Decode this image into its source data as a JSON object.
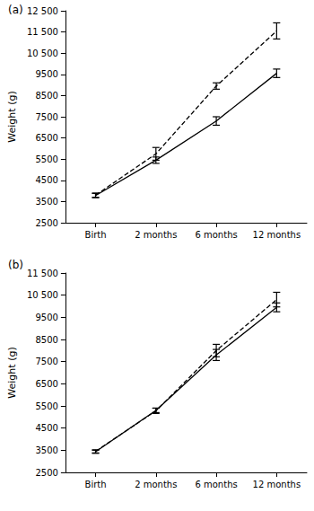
{
  "chart_data": [
    {
      "type": "line",
      "title": "(a)",
      "y_label": "Weight (g)",
      "categories": [
        "Birth",
        "2 months",
        "6 months",
        "12 months"
      ],
      "ylim": [
        2500,
        12500
      ],
      "yticks": [
        2500,
        3500,
        4500,
        5500,
        6500,
        7500,
        8500,
        9500,
        {
          "value": 10500,
          "label": "10 500"
        },
        {
          "value": 11500,
          "label": "11 500"
        },
        {
          "value": 12500,
          "label": "12 500"
        }
      ],
      "grid": false,
      "series": [
        {
          "color": "#000000",
          "line_style": "dashed",
          "values": [
            3800,
            5750,
            8950,
            11550
          ],
          "errors": [
            100,
            300,
            150,
            380
          ]
        },
        {
          "color": "#000000",
          "line_style": "solid",
          "values": [
            3780,
            5450,
            7300,
            9550
          ],
          "errors": [
            100,
            150,
            200,
            200
          ]
        }
      ]
    },
    {
      "type": "line",
      "title": "(b)",
      "y_label": "Weight (g)",
      "categories": [
        "Birth",
        "2 months",
        "6 months",
        "12 months"
      ],
      "ylim": [
        2500,
        11500
      ],
      "yticks": [
        2500,
        3500,
        4500,
        5500,
        6500,
        7500,
        8500,
        9500,
        {
          "value": 10500,
          "label": "10 500"
        },
        {
          "value": 11500,
          "label": "11 500"
        }
      ],
      "grid": false,
      "series": [
        {
          "color": "#000000",
          "line_style": "dashed",
          "values": [
            3450,
            5280,
            8000,
            10300
          ],
          "errors": [
            70,
            120,
            280,
            330
          ]
        },
        {
          "color": "#000000",
          "line_style": "solid",
          "values": [
            3430,
            5300,
            7800,
            9950
          ],
          "errors": [
            70,
            100,
            250,
            200
          ]
        }
      ]
    }
  ]
}
